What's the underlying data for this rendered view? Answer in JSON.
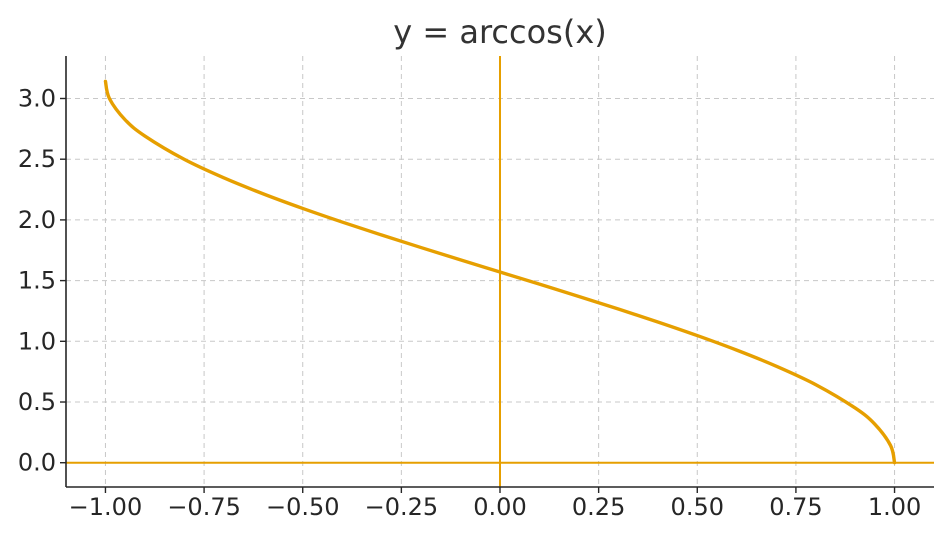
{
  "chart_data": {
    "type": "line",
    "title": "y = arccos(x)",
    "xlabel": "",
    "ylabel": "",
    "xlim": [
      -1.1,
      1.1
    ],
    "ylim": [
      -0.2,
      3.35
    ],
    "grid": true,
    "x_ticks": [
      -1.0,
      -0.75,
      -0.5,
      -0.25,
      0.0,
      0.25,
      0.5,
      0.75,
      1.0
    ],
    "x_tick_labels": [
      "−1.00",
      "−0.75",
      "−0.50",
      "−0.25",
      "0.00",
      "0.25",
      "0.50",
      "0.75",
      "1.00"
    ],
    "y_ticks": [
      0.0,
      0.5,
      1.0,
      1.5,
      2.0,
      2.5,
      3.0
    ],
    "y_tick_labels": [
      "0.0",
      "0.5",
      "1.0",
      "1.5",
      "2.0",
      "2.5",
      "3.0"
    ],
    "reference_lines": {
      "horizontal_y": 0,
      "vertical_x": 0,
      "color": "#E69F00"
    },
    "series": [
      {
        "color": "#E69F00",
        "x": [
          -1.0,
          -0.99,
          -0.95,
          -0.9,
          -0.8,
          -0.7,
          -0.6,
          -0.5,
          -0.4,
          -0.3,
          -0.2,
          -0.1,
          0.0,
          0.1,
          0.2,
          0.3,
          0.4,
          0.5,
          0.6,
          0.7,
          0.8,
          0.9,
          0.95,
          0.99,
          1.0
        ],
        "y": [
          3.1416,
          3.0002,
          2.824,
          2.6906,
          2.4981,
          2.3462,
          2.2143,
          2.0944,
          1.9823,
          1.8755,
          1.7722,
          1.671,
          1.5708,
          1.4706,
          1.3694,
          1.2661,
          1.1593,
          1.0472,
          0.9273,
          0.7954,
          0.6435,
          0.451,
          0.3176,
          0.1415,
          0.0
        ]
      }
    ]
  }
}
